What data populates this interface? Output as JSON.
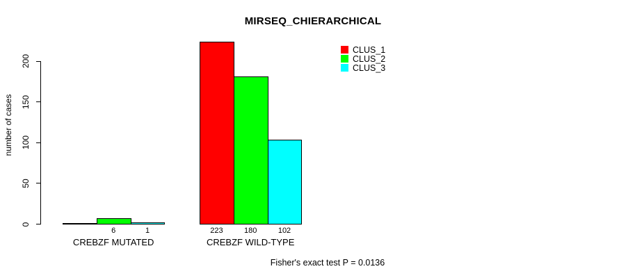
{
  "chart_data": {
    "type": "bar",
    "title": "MIRSEQ_CHIERARCHICAL",
    "ylabel": "number of cases",
    "xlabel": "",
    "categories": [
      "CREBZF MUTATED",
      "CREBZF WILD-TYPE"
    ],
    "series": [
      {
        "name": "CLUS_1",
        "color": "#ff0000",
        "values": [
          0,
          223
        ]
      },
      {
        "name": "CLUS_2",
        "color": "#00ff00",
        "values": [
          6,
          180
        ]
      },
      {
        "name": "CLUS_3",
        "color": "#00ffff",
        "values": [
          1,
          102
        ]
      }
    ],
    "bar_value_labels": [
      [
        "",
        "6",
        "1"
      ],
      [
        "223",
        "180",
        "102"
      ]
    ],
    "yticks": [
      0,
      50,
      100,
      150,
      200
    ],
    "ylim": [
      0,
      232
    ],
    "grid": false,
    "legend_position": "top-right",
    "legend_entries": [
      "CLUS_1",
      "CLUS_2",
      "CLUS_3"
    ],
    "annotation": "Fisher's exact test P = 0.0136"
  }
}
